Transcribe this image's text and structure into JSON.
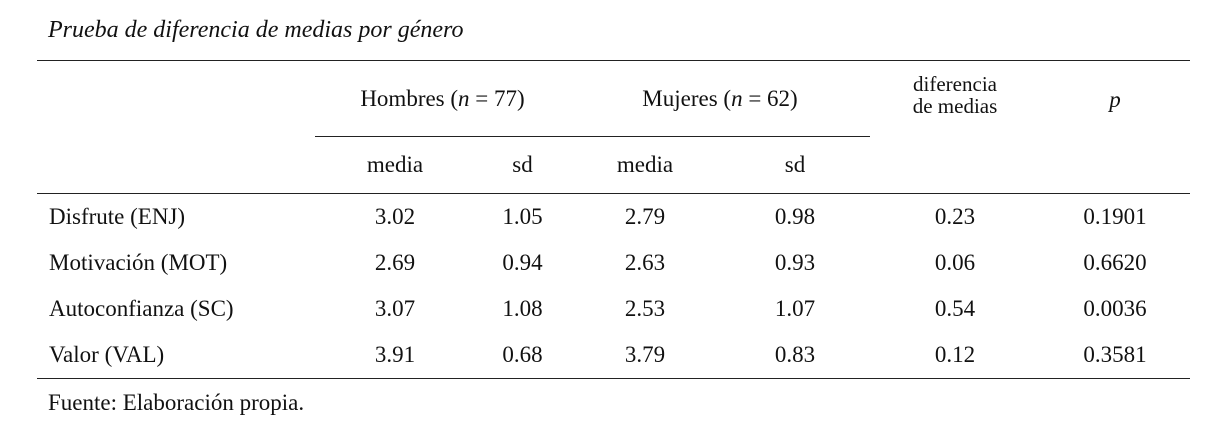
{
  "title": "Prueba de diferencia de medias por género",
  "table": {
    "group_headers": [
      [
        "Hombres (",
        "n",
        " = 77)"
      ],
      [
        "Mujeres (",
        "n",
        " = 62)"
      ],
      [
        "diferencia",
        "de medias"
      ],
      "p"
    ],
    "sub_headers": [
      "media",
      "sd",
      "media",
      "sd"
    ],
    "rows": [
      [
        "Disfrute (ENJ)",
        "3.02",
        "1.05",
        "2.79",
        "0.98",
        "0.23",
        "0.1901"
      ],
      [
        "Motivación (MOT)",
        "2.69",
        "0.94",
        "2.63",
        "0.93",
        "0.06",
        "0.6620"
      ],
      [
        "Autoconfianza (SC)",
        "3.07",
        "1.08",
        "2.53",
        "1.07",
        "0.54",
        "0.0036"
      ],
      [
        "Valor (VAL)",
        "3.91",
        "0.68",
        "3.79",
        "0.83",
        "0.12",
        "0.3581"
      ]
    ]
  },
  "source": "Fuente: Elaboración propia."
}
